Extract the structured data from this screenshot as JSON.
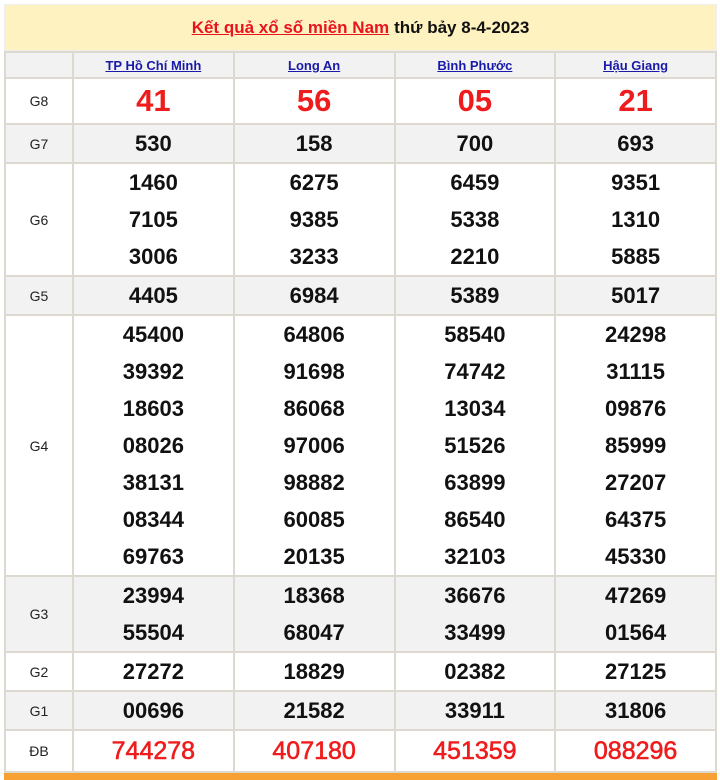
{
  "title": {
    "link": "Kết quả xổ số miền Nam",
    "suffix": "thứ bảy 8-4-2023"
  },
  "provinces": [
    "TP Hồ Chí Minh",
    "Long An",
    "Bình Phước",
    "Hậu Giang"
  ],
  "prizes": [
    {
      "label": "G8",
      "values": [
        [
          "41"
        ],
        [
          "56"
        ],
        [
          "05"
        ],
        [
          "21"
        ]
      ]
    },
    {
      "label": "G7",
      "values": [
        [
          "530"
        ],
        [
          "158"
        ],
        [
          "700"
        ],
        [
          "693"
        ]
      ]
    },
    {
      "label": "G6",
      "values": [
        [
          "1460",
          "7105",
          "3006"
        ],
        [
          "6275",
          "9385",
          "3233"
        ],
        [
          "6459",
          "5338",
          "2210"
        ],
        [
          "9351",
          "1310",
          "5885"
        ]
      ]
    },
    {
      "label": "G5",
      "values": [
        [
          "4405"
        ],
        [
          "6984"
        ],
        [
          "5389"
        ],
        [
          "5017"
        ]
      ]
    },
    {
      "label": "G4",
      "values": [
        [
          "45400",
          "39392",
          "18603",
          "08026",
          "38131",
          "08344",
          "69763"
        ],
        [
          "64806",
          "91698",
          "86068",
          "97006",
          "98882",
          "60085",
          "20135"
        ],
        [
          "58540",
          "74742",
          "13034",
          "51526",
          "63899",
          "86540",
          "32103"
        ],
        [
          "24298",
          "31115",
          "09876",
          "85999",
          "27207",
          "64375",
          "45330"
        ]
      ]
    },
    {
      "label": "G3",
      "values": [
        [
          "23994",
          "55504"
        ],
        [
          "18368",
          "68047"
        ],
        [
          "36676",
          "33499"
        ],
        [
          "47269",
          "01564"
        ]
      ]
    },
    {
      "label": "G2",
      "values": [
        [
          "27272"
        ],
        [
          "18829"
        ],
        [
          "02382"
        ],
        [
          "27125"
        ]
      ]
    },
    {
      "label": "G1",
      "values": [
        [
          "00696"
        ],
        [
          "21582"
        ],
        [
          "33911"
        ],
        [
          "31806"
        ]
      ]
    },
    {
      "label": "ĐB",
      "values": [
        [
          "744278"
        ],
        [
          "407180"
        ],
        [
          "451359"
        ],
        [
          "088296"
        ]
      ]
    }
  ],
  "colors": {
    "title_bg": "#fff2c1",
    "accent_red": "#ee1c1c",
    "link_blue": "#1a1aa8",
    "footer_bar": "#f7a033"
  }
}
